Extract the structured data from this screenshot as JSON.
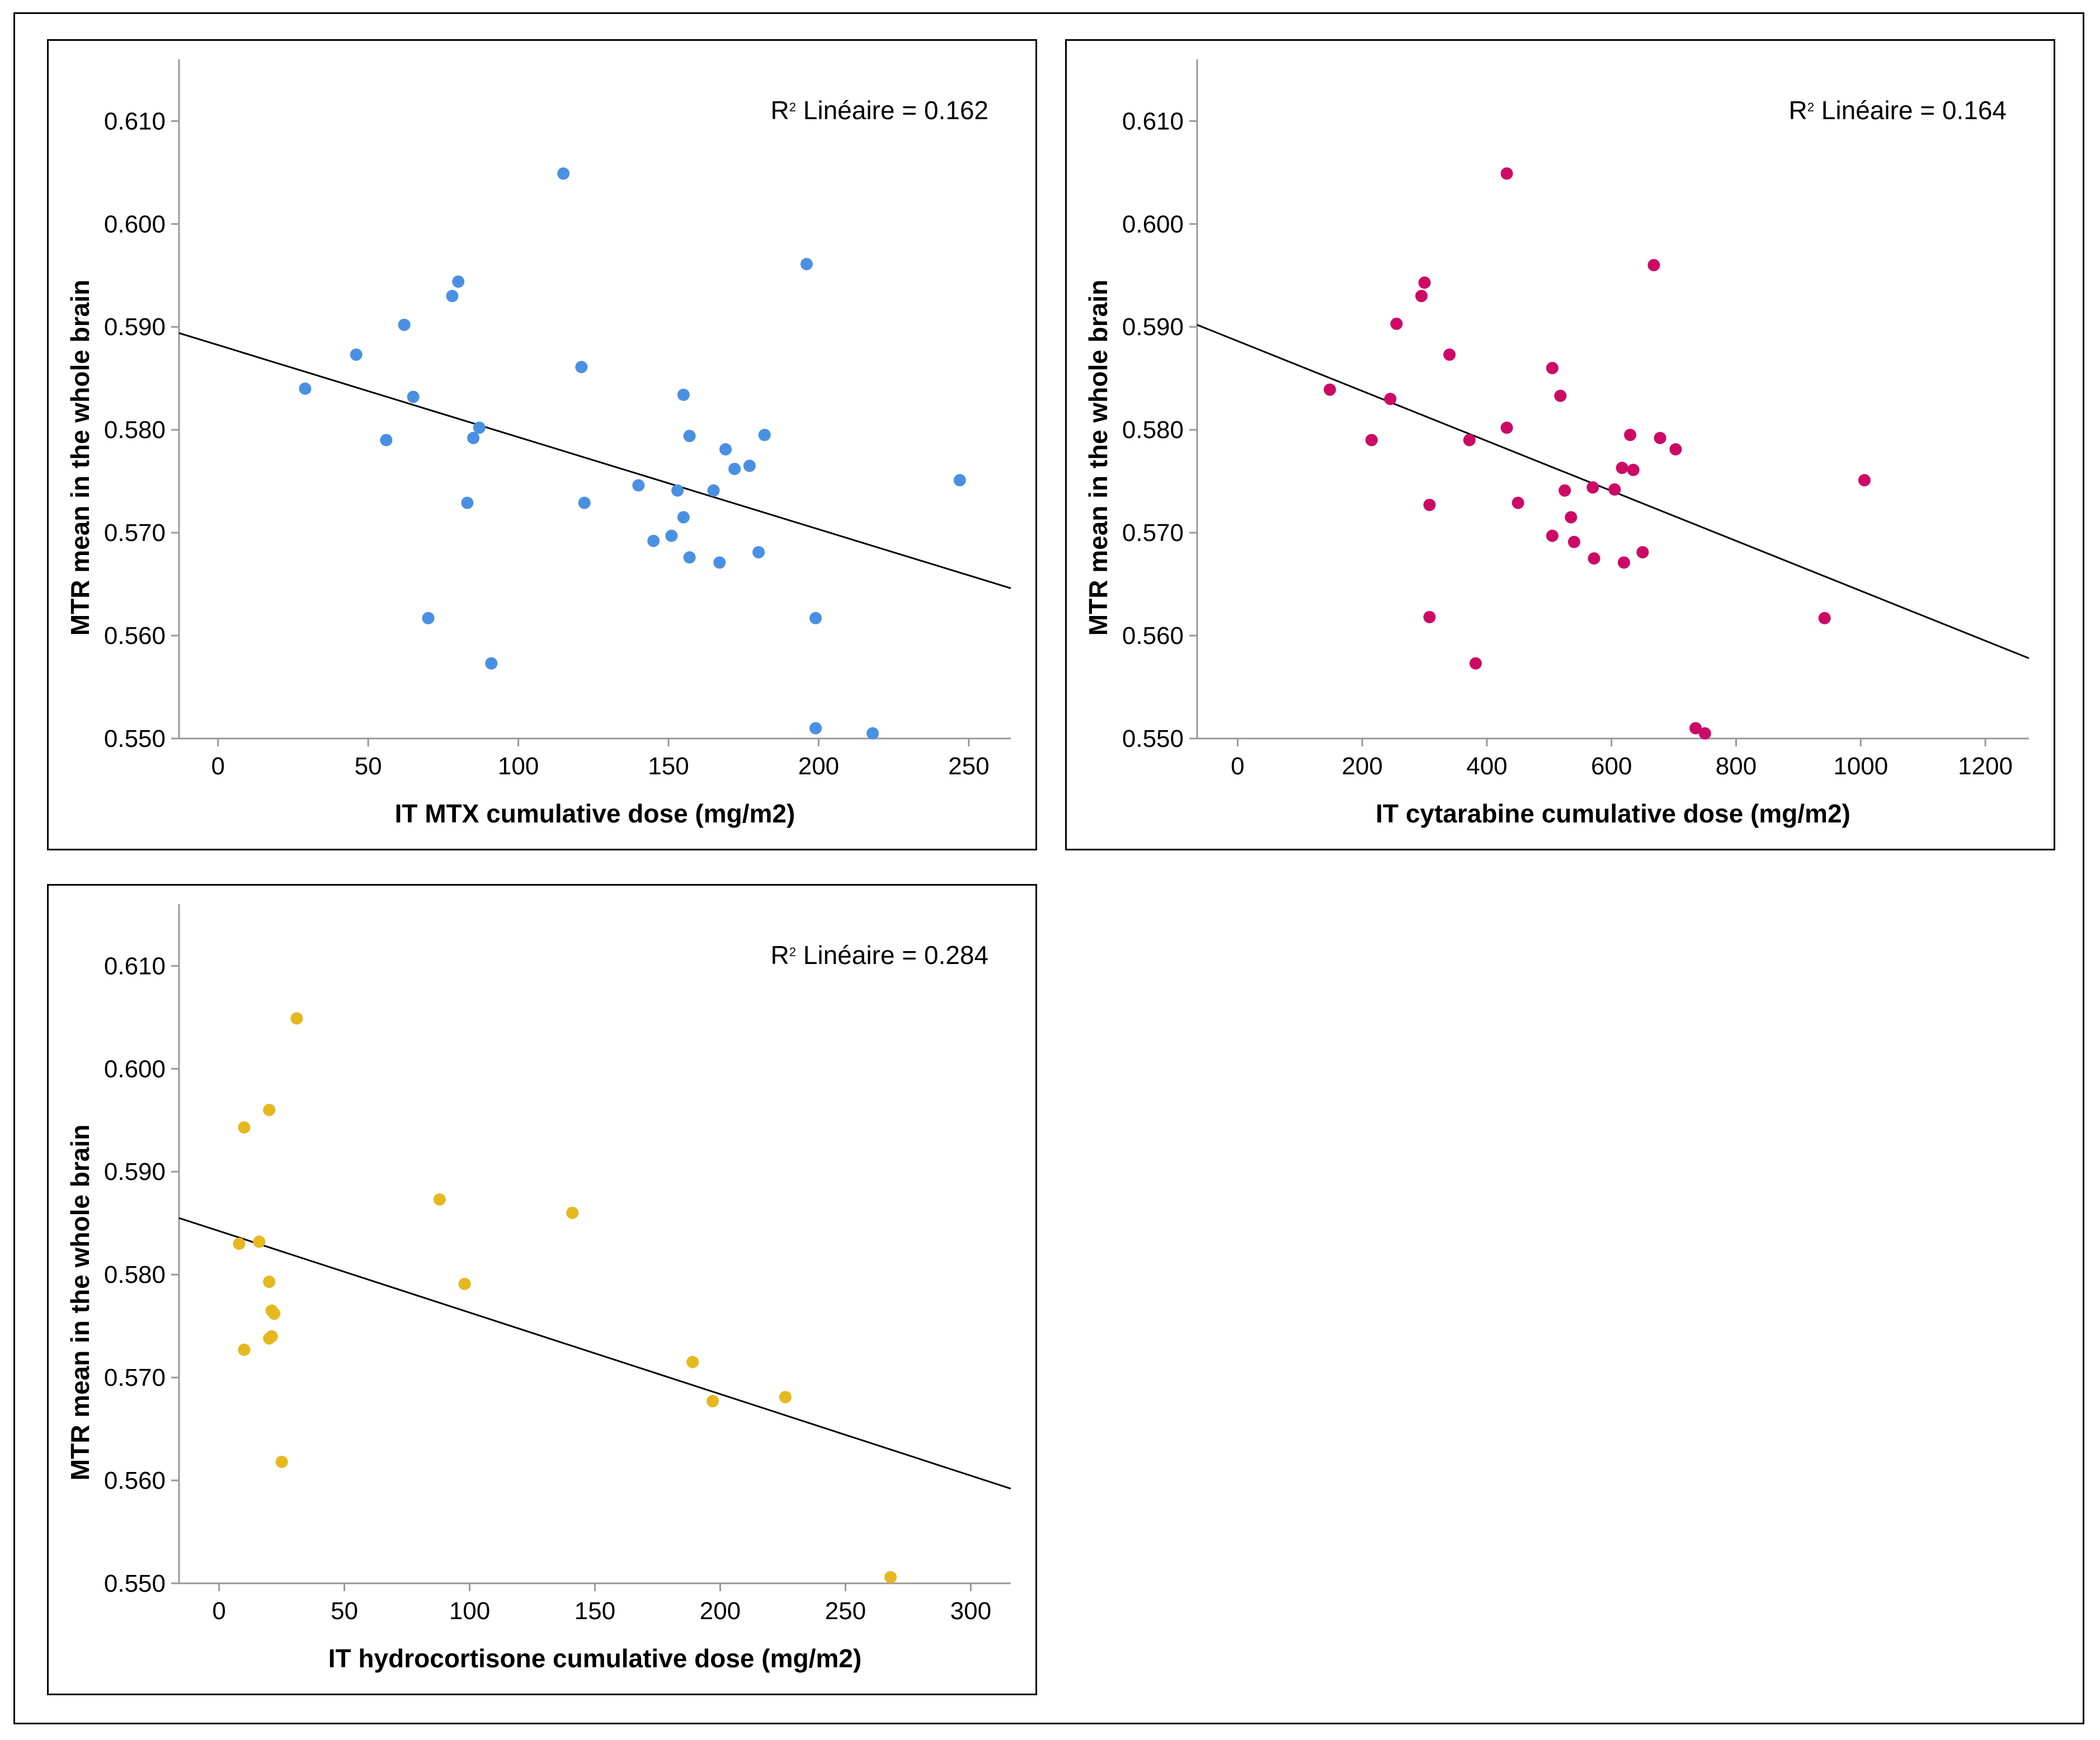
{
  "chart_data": [
    {
      "id": "mtx",
      "type": "scatter",
      "xlabel": "IT MTX cumulative dose (mg/m2)",
      "ylabel": "MTR mean in the whole brain",
      "xlim": [
        -13,
        264
      ],
      "ylim": [
        0.55,
        0.616
      ],
      "xticks": [
        0,
        50,
        100,
        150,
        200,
        250
      ],
      "xtick_labels": [
        "0",
        "50",
        "100",
        "150",
        "200",
        "250"
      ],
      "yticks": [
        0.55,
        0.56,
        0.57,
        0.58,
        0.59,
        0.6,
        0.61
      ],
      "ytick_labels": [
        "0.550",
        "0.560",
        "0.570",
        "0.580",
        "0.590",
        "0.600",
        "0.610"
      ],
      "r2_prefix": "R",
      "r2_sup": "2",
      "r2_text": " Linéaire = 0.162",
      "point_color": "#4a90e2",
      "fit_line": {
        "x": [
          -13,
          264
        ],
        "y": [
          0.5894,
          0.5646
        ]
      },
      "points": [
        [
          29,
          0.584
        ],
        [
          46,
          0.5873
        ],
        [
          56,
          0.579
        ],
        [
          62,
          0.5902
        ],
        [
          65,
          0.5832
        ],
        [
          70,
          0.5617
        ],
        [
          78,
          0.593
        ],
        [
          80,
          0.5944
        ],
        [
          83,
          0.5729
        ],
        [
          85,
          0.5792
        ],
        [
          87,
          0.5802
        ],
        [
          91,
          0.5573
        ],
        [
          115,
          0.6049
        ],
        [
          121,
          0.5861
        ],
        [
          122,
          0.5729
        ],
        [
          140,
          0.5746
        ],
        [
          145,
          0.5692
        ],
        [
          151,
          0.5697
        ],
        [
          153,
          0.5741
        ],
        [
          155,
          0.5715
        ],
        [
          155,
          0.5834
        ],
        [
          157,
          0.5794
        ],
        [
          157,
          0.5676
        ],
        [
          165,
          0.5741
        ],
        [
          167,
          0.5671
        ],
        [
          169,
          0.5781
        ],
        [
          172,
          0.5762
        ],
        [
          177,
          0.5765
        ],
        [
          180,
          0.5681
        ],
        [
          182,
          0.5795
        ],
        [
          196,
          0.5961
        ],
        [
          199,
          0.5617
        ],
        [
          199,
          0.551
        ],
        [
          218,
          0.5505
        ],
        [
          247,
          0.5751
        ]
      ]
    },
    {
      "id": "cytarabine",
      "type": "scatter",
      "xlabel": "IT cytarabine cumulative dose (mg/m2)",
      "ylabel": "MTR mean in the whole brain",
      "xlim": [
        -65,
        1270
      ],
      "ylim": [
        0.55,
        0.616
      ],
      "xticks": [
        0,
        200,
        400,
        600,
        800,
        1000,
        1200
      ],
      "xtick_labels": [
        "0",
        "200",
        "400",
        "600",
        "800",
        "1000",
        "1200"
      ],
      "yticks": [
        0.55,
        0.56,
        0.57,
        0.58,
        0.59,
        0.6,
        0.61
      ],
      "ytick_labels": [
        "0.550",
        "0.560",
        "0.570",
        "0.580",
        "0.590",
        "0.600",
        "0.610"
      ],
      "r2_prefix": "R",
      "r2_sup": "2",
      "r2_text": " Linéaire = 0.164",
      "point_color": "#cc0a66",
      "fit_line": {
        "x": [
          -65,
          1270
        ],
        "y": [
          0.5902,
          0.5578
        ]
      },
      "points": [
        [
          148,
          0.5839
        ],
        [
          215,
          0.579
        ],
        [
          245,
          0.583
        ],
        [
          255,
          0.5903
        ],
        [
          295,
          0.593
        ],
        [
          300,
          0.5943
        ],
        [
          308,
          0.5727
        ],
        [
          308,
          0.5618
        ],
        [
          340,
          0.5873
        ],
        [
          372,
          0.579
        ],
        [
          382,
          0.5573
        ],
        [
          432,
          0.6049
        ],
        [
          432,
          0.5802
        ],
        [
          450,
          0.5729
        ],
        [
          505,
          0.586
        ],
        [
          505,
          0.5697
        ],
        [
          518,
          0.5833
        ],
        [
          525,
          0.5741
        ],
        [
          535,
          0.5715
        ],
        [
          540,
          0.5691
        ],
        [
          570,
          0.5744
        ],
        [
          572,
          0.5675
        ],
        [
          605,
          0.5742
        ],
        [
          617,
          0.5763
        ],
        [
          620,
          0.5671
        ],
        [
          630,
          0.5795
        ],
        [
          635,
          0.5761
        ],
        [
          650,
          0.5681
        ],
        [
          668,
          0.596
        ],
        [
          678,
          0.5792
        ],
        [
          703,
          0.5781
        ],
        [
          735,
          0.551
        ],
        [
          750,
          0.5505
        ],
        [
          942,
          0.5617
        ],
        [
          1006,
          0.5751
        ]
      ]
    },
    {
      "id": "hydrocortisone",
      "type": "scatter",
      "xlabel": "IT hydrocortisone cumulative dose (mg/m2)",
      "ylabel": "MTR mean in the whole brain",
      "xlim": [
        -16,
        316
      ],
      "ylim": [
        0.55,
        0.616
      ],
      "xticks": [
        0,
        50,
        100,
        150,
        200,
        250,
        300
      ],
      "xtick_labels": [
        "0",
        "50",
        "100",
        "150",
        "200",
        "250",
        "300"
      ],
      "yticks": [
        0.55,
        0.56,
        0.57,
        0.58,
        0.59,
        0.6,
        0.61
      ],
      "ytick_labels": [
        "0.550",
        "0.560",
        "0.570",
        "0.580",
        "0.590",
        "0.600",
        "0.610"
      ],
      "r2_prefix": "R",
      "r2_sup": "2",
      "r2_text": " Linéaire = 0.284",
      "point_color": "#e6b820",
      "fit_line": {
        "x": [
          -16,
          316
        ],
        "y": [
          0.5855,
          0.5592
        ]
      },
      "points": [
        [
          8,
          0.583
        ],
        [
          10,
          0.5943
        ],
        [
          10,
          0.5727
        ],
        [
          16,
          0.5832
        ],
        [
          20,
          0.596
        ],
        [
          20,
          0.5793
        ],
        [
          20,
          0.5738
        ],
        [
          21,
          0.5765
        ],
        [
          21,
          0.574
        ],
        [
          22,
          0.5762
        ],
        [
          25,
          0.5618
        ],
        [
          31,
          0.6049
        ],
        [
          88,
          0.5873
        ],
        [
          98,
          0.5791
        ],
        [
          141,
          0.586
        ],
        [
          189,
          0.5715
        ],
        [
          197,
          0.5677
        ],
        [
          226,
          0.5681
        ],
        [
          268,
          0.5506
        ]
      ]
    }
  ]
}
